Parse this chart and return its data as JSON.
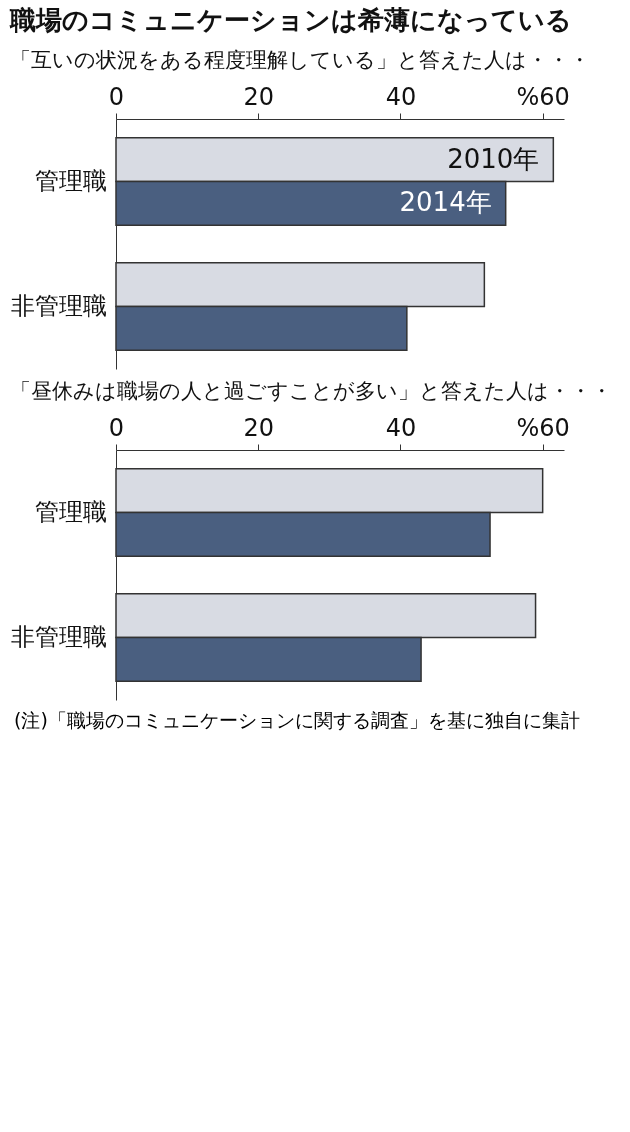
{
  "chart_data": [
    {
      "type": "bar",
      "orientation": "horizontal",
      "title": "職場のコミュニケーションは希薄になっている",
      "subtitle": "「互いの状況をある程度理解している」と答えた人は・・・",
      "categories": [
        "管理職",
        "非管理職"
      ],
      "series": [
        {
          "name": "2010年",
          "color": "#d8dbe3",
          "values": [
            61.5,
            51.8
          ]
        },
        {
          "name": "2014年",
          "color": "#4a5f80",
          "values": [
            54.8,
            40.9
          ]
        }
      ],
      "xlim": [
        0,
        63
      ],
      "xticks": [
        0,
        20,
        40,
        {
          "value": 60,
          "label": "%60"
        }
      ],
      "grid": false,
      "legend": false
    },
    {
      "type": "bar",
      "orientation": "horizontal",
      "title": "「昼休みは職場の人と過ごすことが多い」と答えた人は・・・",
      "categories": [
        "管理職",
        "非管理職"
      ],
      "series": [
        {
          "color": "#d8dbe3",
          "values": [
            60.0,
            59.0
          ]
        },
        {
          "color": "#4a5f80",
          "values": [
            52.6,
            42.9
          ]
        }
      ],
      "xlim": [
        0,
        63
      ],
      "xticks": [
        0,
        20,
        40,
        {
          "value": 60,
          "label": "%60"
        }
      ],
      "grid": false,
      "legend": false,
      "annotations": [
        "(注)「職場のコミュニケーションに関する調査」を基に独自に集計"
      ]
    }
  ]
}
